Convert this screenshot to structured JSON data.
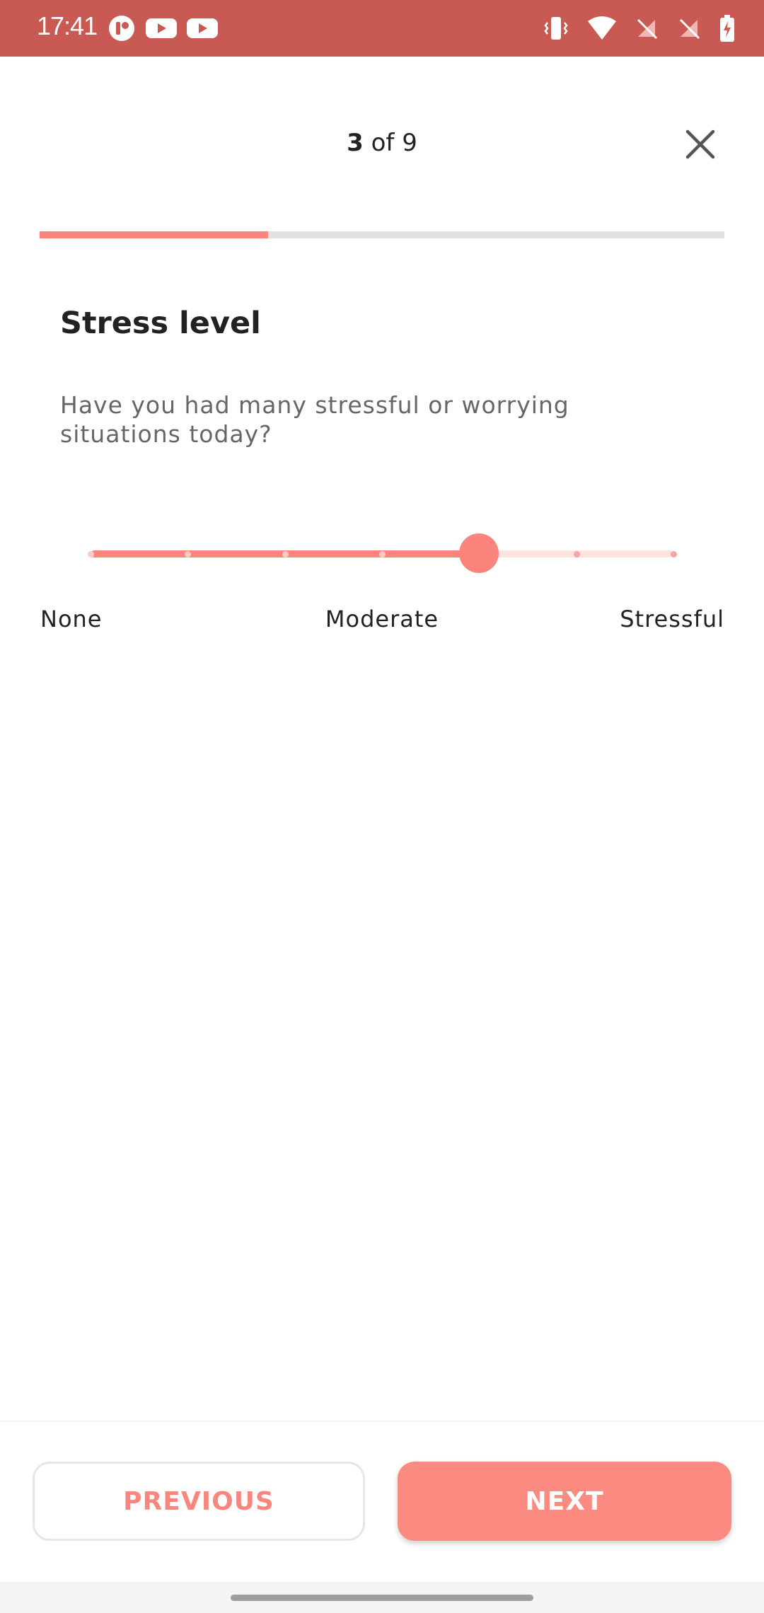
{
  "status_bar": {
    "time": "17:41",
    "left_icons": [
      "app-notification-icon",
      "youtube-icon",
      "youtube-icon"
    ],
    "right_icons": [
      "vibrate-icon",
      "wifi-icon",
      "no-sim-icon",
      "no-sim-icon",
      "battery-charging-icon"
    ],
    "background": "#c95a53"
  },
  "header": {
    "step_current": "3",
    "step_separator": "of",
    "step_total": "9",
    "close_icon": "close-icon",
    "progress_fraction": 0.3333
  },
  "question": {
    "title": "Stress level",
    "text": "Have you had many stressful or worrying situations today?"
  },
  "slider": {
    "steps": 7,
    "selected_index": 4,
    "labels": {
      "min": "None",
      "mid": "Moderate",
      "max": "Stressful"
    },
    "accent": "#fb857c",
    "inactive": "#fde2df"
  },
  "buttons": {
    "previous": "PREVIOUS",
    "next": "NEXT"
  }
}
